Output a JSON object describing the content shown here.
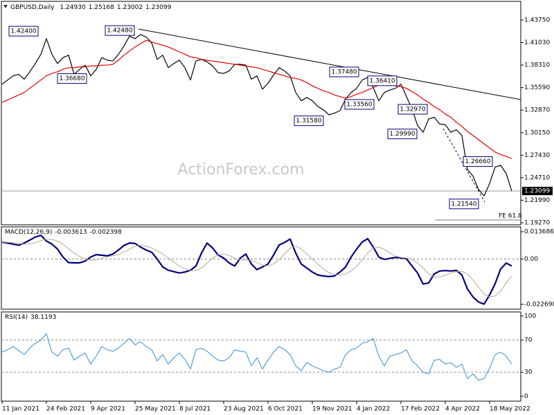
{
  "header": {
    "symbol": "GBPUSD,Daily",
    "ohlc": [
      {
        "value": 1.2493,
        "label": "1.24930"
      },
      {
        "value": 1.25168,
        "label": "1.25168"
      },
      {
        "value": 1.23002,
        "label": "1.23002"
      },
      {
        "value": 1.23099,
        "label": "1.23099"
      }
    ]
  },
  "watermark": "ActionForex.com",
  "chart_data": [
    {
      "type": "line",
      "ylim": [
        1.1902,
        1.46
      ],
      "yticks": [
        {
          "value": 1.4375,
          "label": "1.43750"
        },
        {
          "value": 1.4103,
          "label": "1.41030"
        },
        {
          "value": 1.3831,
          "label": "1.38310"
        },
        {
          "value": 1.3559,
          "label": "1.35590"
        },
        {
          "value": 1.3287,
          "label": "1.32870"
        },
        {
          "value": 1.3015,
          "label": "1.30150"
        },
        {
          "value": 1.2743,
          "label": "1.27430"
        },
        {
          "value": 1.2471,
          "label": "1.24710"
        },
        {
          "value": 1.2199,
          "label": "1.21990"
        },
        {
          "value": 1.1927,
          "label": "1.19270"
        }
      ],
      "xlim": [
        0,
        92
      ],
      "xticks": [
        {
          "value": 0,
          "label": "11 Jan 2021"
        },
        {
          "value": 8,
          "label": "24 Feb 2021"
        },
        {
          "value": 16,
          "label": "9 Apr 2021"
        },
        {
          "value": 24,
          "label": "25 May 2021"
        },
        {
          "value": 32,
          "label": "8 Jul 2021"
        },
        {
          "value": 40,
          "label": "23 Aug 2021"
        },
        {
          "value": 48,
          "label": "6 Oct 2021"
        },
        {
          "value": 56,
          "label": "19 Nov 2021"
        },
        {
          "value": 64,
          "label": "4 Jan 2022"
        },
        {
          "value": 72,
          "label": "17 Feb 2022"
        },
        {
          "value": 80,
          "label": "4 Apr 2022"
        },
        {
          "value": 88,
          "label": "18 May 2022"
        }
      ],
      "series": [
        {
          "color": "#000000",
          "width": 1.2,
          "values": [
            1.36,
            1.365,
            1.37,
            1.372,
            1.366,
            1.375,
            1.385,
            1.396,
            1.415,
            1.396,
            1.385,
            1.392,
            1.395,
            1.372,
            1.378,
            1.383,
            1.37,
            1.378,
            1.392,
            1.389,
            1.388,
            1.396,
            1.406,
            1.418,
            1.415,
            1.42,
            1.417,
            1.41,
            1.39,
            1.395,
            1.38,
            1.385,
            1.389,
            1.38,
            1.365,
            1.388,
            1.39,
            1.387,
            1.382,
            1.374,
            1.373,
            1.376,
            1.384,
            1.384,
            1.383,
            1.366,
            1.37,
            1.354,
            1.361,
            1.371,
            1.38,
            1.376,
            1.37,
            1.35,
            1.34,
            1.344,
            1.34,
            1.333,
            1.329,
            1.323,
            1.325,
            1.328,
            1.342,
            1.35,
            1.355,
            1.365,
            1.368,
            1.356,
            1.34,
            1.35,
            1.353,
            1.355,
            1.36,
            1.345,
            1.33,
            1.31,
            1.302,
            1.318,
            1.32,
            1.312,
            1.311,
            1.302,
            1.305,
            1.298,
            1.257,
            1.249,
            1.233,
            1.225,
            1.24,
            1.26,
            1.262,
            1.252,
            1.231
          ]
        },
        {
          "color": "#e00000",
          "width": 1.2,
          "values": [
            1.338,
            1.341,
            1.344,
            1.347,
            1.35,
            1.355,
            1.36,
            1.365,
            1.37,
            1.373,
            1.375,
            1.378,
            1.38,
            1.38,
            1.381,
            1.381,
            1.382,
            1.382,
            1.383,
            1.383,
            1.384,
            1.389,
            1.395,
            1.4,
            1.405,
            1.409,
            1.413,
            1.411,
            1.409,
            1.407,
            1.405,
            1.402,
            1.399,
            1.396,
            1.393,
            1.392,
            1.39,
            1.389,
            1.388,
            1.387,
            1.386,
            1.385,
            1.384,
            1.383,
            1.382,
            1.381,
            1.38,
            1.378,
            1.376,
            1.374,
            1.372,
            1.37,
            1.368,
            1.367,
            1.365,
            1.362,
            1.358,
            1.355,
            1.352,
            1.35,
            1.347,
            1.345,
            1.343,
            1.345,
            1.348,
            1.35,
            1.353,
            1.356,
            1.359,
            1.362,
            1.36,
            1.358,
            1.357,
            1.355,
            1.351,
            1.347,
            1.342,
            1.338,
            1.333,
            1.329,
            1.324,
            1.32,
            1.314,
            1.309,
            1.303,
            1.298,
            1.293,
            1.288,
            1.283,
            1.278,
            1.275,
            1.273,
            1.27
          ]
        }
      ],
      "annotations": [
        {
          "value": 1.424,
          "label": "1.42400"
        },
        {
          "value": 1.3668,
          "label": "1.36680"
        },
        {
          "value": 1.4248,
          "label": "1.42480"
        },
        {
          "value": 1.3748,
          "label": "1.37480"
        },
        {
          "value": 1.3356,
          "label": "1.33560"
        },
        {
          "value": 1.3641,
          "label": "1.36410"
        },
        {
          "value": 1.3158,
          "label": "1.31580"
        },
        {
          "value": 1.3297,
          "label": "1.32970"
        },
        {
          "value": 1.2999,
          "label": "1.29990"
        },
        {
          "value": 1.2666,
          "label": "1.26660"
        },
        {
          "value": 1.2154,
          "label": "1.21540"
        }
      ],
      "last_price": {
        "value": 1.23099,
        "label": "1.23099"
      },
      "fe_label": "FE 61.8"
    },
    {
      "type": "line",
      "title": "MACD(12,26,9)",
      "readout": [
        -0.003613,
        -0.002398
      ],
      "ylim": [
        -0.02512,
        0.01611
      ],
      "yticks": [
        0.013686,
        {
          "value": 0,
          "label": "0.00"
        },
        -0.022698
      ],
      "levels": [
        0
      ],
      "series": [
        {
          "color": "#00007a",
          "width": 2.2,
          "values": [
            0.0085,
            0.008,
            0.0075,
            0.0069,
            0.008,
            0.0095,
            0.011,
            0.0119,
            0.009,
            0.0075,
            0.005,
            0.001,
            -0.0018,
            -0.0019,
            -0.0019,
            -0.001,
            0.001,
            0.0022,
            0.0019,
            0.0016,
            0.0025,
            0.0045,
            0.0068,
            0.008,
            0.0078,
            0.006,
            0.0045,
            0.0034,
            0,
            -0.004,
            -0.0056,
            -0.0063,
            -0.007,
            -0.0065,
            -0.0056,
            -0.0035,
            0.003,
            0.008,
            0.0055,
            0.002,
            0.0005,
            -0.002,
            -0.0035,
            0.0005,
            0.0025,
            -0.0025,
            -0.0053,
            -0.004,
            -0.0025,
            0.002,
            0.007,
            0.0083,
            0.01,
            0.003,
            -0.0025,
            -0.0045,
            -0.0065,
            -0.008,
            -0.0085,
            -0.0088,
            -0.0085,
            -0.0065,
            -0.004,
            0.001,
            0.005,
            0.0085,
            0.0102,
            0.006,
            0.001,
            -0.0002,
            0.0003,
            0.0008,
            0.0006,
            0.0001,
            -0.0035,
            -0.007,
            -0.0125,
            -0.012,
            -0.0075,
            -0.006,
            -0.0058,
            -0.006,
            -0.0057,
            -0.008,
            -0.015,
            -0.019,
            -0.0215,
            -0.0226,
            -0.018,
            -0.0123,
            -0.005,
            -0.002,
            -0.0035
          ]
        },
        {
          "color": "#b8a890",
          "width": 1,
          "values": [
            0.0085,
            0.0084,
            0.0082,
            0.0078,
            0.0075,
            0.0076,
            0.0082,
            0.0092,
            0.01,
            0.0098,
            0.009,
            0.0075,
            0.0052,
            0.003,
            0.0012,
            0,
            -0.0006,
            -0.0004,
            0.0004,
            0.0011,
            0.0016,
            0.0022,
            0.0035,
            0.005,
            0.0064,
            0.0069,
            0.0064,
            0.0055,
            0.0042,
            0.0025,
            0.0005,
            -0.0015,
            -0.0035,
            -0.005,
            -0.0058,
            -0.0058,
            -0.0045,
            -0.002,
            0.0005,
            0.002,
            0.0025,
            0.0018,
            0.0005,
            -0.0005,
            -0.0005,
            -0.0008,
            -0.0018,
            -0.003,
            -0.0035,
            -0.0025,
            -0.0005,
            0.0025,
            0.0055,
            0.0065,
            0.005,
            0.0025,
            0,
            -0.0025,
            -0.005,
            -0.0068,
            -0.0078,
            -0.008,
            -0.0075,
            -0.006,
            -0.0035,
            -0.0005,
            0.003,
            0.0055,
            0.006,
            0.0048,
            0.003,
            0.0015,
            0.0008,
            0.0005,
            -0.0002,
            -0.002,
            -0.0045,
            -0.0075,
            -0.009,
            -0.009,
            -0.008,
            -0.007,
            -0.0063,
            -0.0062,
            -0.0075,
            -0.0105,
            -0.014,
            -0.0175,
            -0.019,
            -0.0185,
            -0.016,
            -0.012,
            -0.0085
          ]
        }
      ]
    },
    {
      "type": "line",
      "title": "RSI(14)",
      "readout": 38.1193,
      "ylim": [
        -6,
        105
      ],
      "yticks": [
        100,
        70,
        30,
        0
      ],
      "levels": [
        70,
        30
      ],
      "series": [
        {
          "color": "#2f8fd8",
          "width": 1,
          "values": [
            55,
            58,
            62,
            57,
            52,
            60,
            66,
            70,
            78,
            55,
            50,
            58,
            60,
            45,
            50,
            54,
            40,
            50,
            62,
            58,
            56,
            60,
            66,
            72,
            64,
            68,
            62,
            58,
            44,
            52,
            40,
            48,
            54,
            46,
            34,
            58,
            60,
            56,
            50,
            45,
            44,
            48,
            58,
            56,
            55,
            38,
            48,
            34,
            45,
            55,
            62,
            58,
            52,
            38,
            32,
            42,
            38,
            35,
            32,
            30,
            34,
            36,
            52,
            58,
            60,
            66,
            68,
            72,
            50,
            38,
            50,
            52,
            54,
            58,
            44,
            38,
            30,
            28,
            45,
            46,
            40,
            42,
            36,
            40,
            22,
            28,
            20,
            22,
            35,
            52,
            55,
            50,
            40
          ]
        }
      ]
    }
  ]
}
